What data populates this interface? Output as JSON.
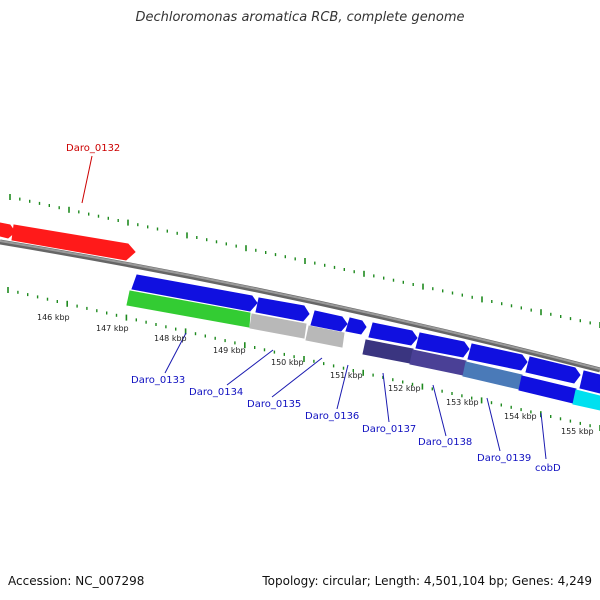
{
  "title": "Dechloromonas aromatica RCB, complete genome",
  "accession": "Accession: NC_007298",
  "summary": "Topology: circular; Length: 4,501,104 bp; Genes: 4,249",
  "colors": {
    "tick": "#1f8a1f",
    "backbone": "#7a7a7a",
    "leader": "#1a1ab0",
    "leader_red": "#cc0000"
  },
  "kbp_labels": [
    "146 kbp",
    "147 kbp",
    "148 kbp",
    "149 kbp",
    "150 kbp",
    "151 kbp",
    "152 kbp",
    "153 kbp",
    "154 kbp",
    "155 kbp"
  ],
  "gene_labels": [
    "Daro_0132",
    "Daro_0133",
    "Daro_0134",
    "Daro_0135",
    "Daro_0136",
    "Daro_0137",
    "Daro_0138",
    "Daro_0139",
    "cobD"
  ],
  "features": [
    {
      "name": "feature-red-left",
      "color": "#ff1a1a"
    },
    {
      "name": "feature-red",
      "color": "#ff1a1a"
    },
    {
      "name": "feature-blue",
      "color": "#1010e0"
    },
    {
      "name": "feature-blue",
      "color": "#1010e0"
    },
    {
      "name": "feature-blue",
      "color": "#1010e0"
    },
    {
      "name": "feature-blue",
      "color": "#1010e0"
    },
    {
      "name": "feature-blue",
      "color": "#1010e0"
    },
    {
      "name": "feature-blue",
      "color": "#1010e0"
    },
    {
      "name": "feature-blue",
      "color": "#1010e0"
    },
    {
      "name": "feature-blue",
      "color": "#1010e0"
    },
    {
      "name": "feature-blue",
      "color": "#1010e0"
    },
    {
      "name": "feature-green",
      "color": "#33cc33"
    },
    {
      "name": "feature-gray",
      "color": "#b8b8b8"
    },
    {
      "name": "feature-gray",
      "color": "#b8b8b8"
    },
    {
      "name": "feature-indigo",
      "color": "#3a3580"
    },
    {
      "name": "feature-indigo",
      "color": "#4a4096"
    },
    {
      "name": "feature-steelblue",
      "color": "#4a7ab8"
    },
    {
      "name": "feature-blue",
      "color": "#1010e0"
    },
    {
      "name": "feature-cyan",
      "color": "#00e0f0"
    }
  ]
}
